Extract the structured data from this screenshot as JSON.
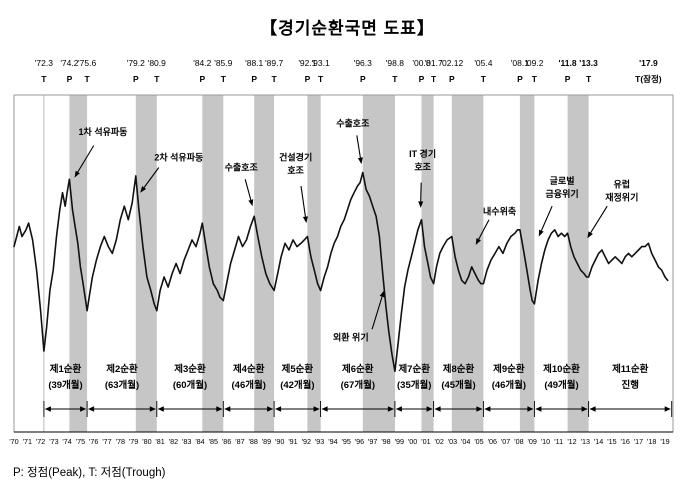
{
  "title": "【경기순환국면 도표】",
  "footnote": "P: 정점(Peak), T: 저점(Trough)",
  "chart_data": {
    "type": "line",
    "title": "경기순환국면 도표",
    "xlabel": "",
    "ylabel": "",
    "grid": false,
    "legend": "none",
    "x_range": [
      1970,
      2019.6
    ],
    "y_range": [
      0,
      100
    ],
    "colors": {
      "line": "#111111",
      "band": "#c6c6c6",
      "frame": "#999999",
      "text": "#000000"
    },
    "x_ticks": [
      "'70",
      "'71",
      "'72",
      "'73",
      "'74",
      "'75",
      "'76",
      "'77",
      "'78",
      "'79",
      "'80",
      "'81",
      "'82",
      "'83",
      "'84",
      "'85",
      "'86",
      "'87",
      "'88",
      "'89",
      "'90",
      "'91",
      "'92",
      "'93",
      "'94",
      "'95",
      "'96",
      "'97",
      "'98",
      "'99",
      "'00",
      "'01",
      "'02",
      "'03",
      "'04",
      "'05",
      "'06",
      "'07",
      "'08",
      "'09",
      "'10",
      "'11",
      "'12",
      "'13",
      "'14",
      "'15",
      "'16",
      "'17",
      "'18",
      "'19"
    ],
    "turning_points": [
      {
        "date": "'72.3",
        "marker": "T",
        "year": 1972.25,
        "bold": false
      },
      {
        "date": "'74.2",
        "marker": "P",
        "year": 1974.17,
        "bold": false
      },
      {
        "date": "'75.6",
        "marker": "T",
        "year": 1975.5,
        "bold": false
      },
      {
        "date": "'79.2",
        "marker": "P",
        "year": 1979.17,
        "bold": false
      },
      {
        "date": "'80.9",
        "marker": "T",
        "year": 1980.75,
        "bold": false
      },
      {
        "date": "'84.2",
        "marker": "P",
        "year": 1984.17,
        "bold": false
      },
      {
        "date": "'85.9",
        "marker": "T",
        "year": 1985.75,
        "bold": false
      },
      {
        "date": "'88.1",
        "marker": "P",
        "year": 1988.08,
        "bold": false
      },
      {
        "date": "'89.7",
        "marker": "T",
        "year": 1989.58,
        "bold": false
      },
      {
        "date": "'92.1",
        "marker": "P",
        "year": 1992.08,
        "bold": false
      },
      {
        "date": "'93.1",
        "marker": "T",
        "year": 1993.08,
        "bold": false
      },
      {
        "date": "'96.3",
        "marker": "P",
        "year": 1996.25,
        "bold": false
      },
      {
        "date": "'98.8",
        "marker": "T",
        "year": 1998.67,
        "bold": false
      },
      {
        "date": "'00.8",
        "marker": "P",
        "year": 2000.67,
        "bold": false
      },
      {
        "date": "'01.7",
        "marker": "T",
        "year": 2001.58,
        "bold": false
      },
      {
        "date": "'02.12",
        "marker": "P",
        "year": 2002.95,
        "bold": false
      },
      {
        "date": "'05.4",
        "marker": "T",
        "year": 2005.33,
        "bold": false
      },
      {
        "date": "'08.1",
        "marker": "P",
        "year": 2008.08,
        "bold": false
      },
      {
        "date": "'09.2",
        "marker": "T",
        "year": 2009.17,
        "bold": false
      },
      {
        "date": "'11.8",
        "marker": "P",
        "year": 2011.67,
        "bold": true
      },
      {
        "date": "'13.3",
        "marker": "T",
        "year": 2013.25,
        "bold": true
      },
      {
        "date": "'17.9",
        "marker": "T(잠정)",
        "year": 2017.75,
        "bold": true
      }
    ],
    "contraction_bands": [
      [
        1974.17,
        1975.5
      ],
      [
        1979.17,
        1980.75
      ],
      [
        1984.17,
        1985.75
      ],
      [
        1988.08,
        1989.58
      ],
      [
        1992.08,
        1993.08
      ],
      [
        1996.25,
        1998.67
      ],
      [
        2000.67,
        2001.58
      ],
      [
        2002.95,
        2005.33
      ],
      [
        2008.08,
        2009.17
      ],
      [
        2011.67,
        2013.25
      ]
    ],
    "reference_lines": [
      1972.25
    ],
    "cycles": [
      {
        "label": "제1순환",
        "sub": "(39개월)",
        "start": 1972.25,
        "end": 1975.5
      },
      {
        "label": "제2순환",
        "sub": "(63개월)",
        "start": 1975.5,
        "end": 1980.75
      },
      {
        "label": "제3순환",
        "sub": "(60개월)",
        "start": 1980.75,
        "end": 1985.75
      },
      {
        "label": "제4순환",
        "sub": "(46개월)",
        "start": 1985.75,
        "end": 1989.58
      },
      {
        "label": "제5순환",
        "sub": "(42개월)",
        "start": 1989.58,
        "end": 1993.08
      },
      {
        "label": "제6순환",
        "sub": "(67개월)",
        "start": 1993.08,
        "end": 1998.67
      },
      {
        "label": "제7순환",
        "sub": "(35개월)",
        "start": 1998.67,
        "end": 2001.58
      },
      {
        "label": "제8순환",
        "sub": "(45개월)",
        "start": 2001.58,
        "end": 2005.33
      },
      {
        "label": "제9순환",
        "sub": "(46개월)",
        "start": 2005.33,
        "end": 2009.17
      },
      {
        "label": "제10순환",
        "sub": "(49개월)",
        "start": 2009.17,
        "end": 2013.25
      },
      {
        "label": "제11순환",
        "sub": "진행",
        "start": 2013.25,
        "end": 2019.5
      }
    ],
    "annotations": [
      {
        "text": "1차 석유파동",
        "label_year": 1976.7,
        "label_v": 89,
        "arrow_from": [
          1976.0,
          85
        ],
        "arrow_to": [
          1974.55,
          75.5
        ]
      },
      {
        "text": "2차 석유파동",
        "label_year": 1982.4,
        "label_v": 81.5,
        "arrow_from": [
          1980.9,
          78.5
        ],
        "arrow_to": [
          1979.5,
          71
        ]
      },
      {
        "text": "수출호조",
        "label_year": 1987.1,
        "label_v": 78.5,
        "arrow_from": [
          1987.4,
          75
        ],
        "arrow_to": [
          1987.95,
          67
        ]
      },
      {
        "text": "건설경기\n호조",
        "label_year": 1991.2,
        "label_v": 79.5,
        "arrow_from": [
          1991.6,
          73
        ],
        "arrow_to": [
          1992.0,
          62
        ]
      },
      {
        "text": "수출호조",
        "label_year": 1995.5,
        "label_v": 91.5,
        "arrow_from": [
          1995.8,
          88
        ],
        "arrow_to": [
          1996.15,
          79.5
        ]
      },
      {
        "text": "IT 경기\n호조",
        "label_year": 2000.75,
        "label_v": 80.5,
        "arrow_from": [
          2000.65,
          74
        ],
        "arrow_to": [
          2000.6,
          66.5
        ]
      },
      {
        "text": "외환 위기",
        "label_year": 1995.35,
        "label_v": 28,
        "arrow_from": [
          1996.95,
          30.5
        ],
        "arrow_to": [
          1997.85,
          42
        ]
      },
      {
        "text": "내수위축",
        "label_year": 2006.55,
        "label_v": 65.5,
        "arrow_from": [
          2005.75,
          63
        ],
        "arrow_to": [
          2004.75,
          55.5
        ]
      },
      {
        "text": "글로벌\n금융위기",
        "label_year": 2011.25,
        "label_v": 72.5,
        "arrow_from": [
          2010.5,
          67
        ],
        "arrow_to": [
          2009.5,
          58
        ]
      },
      {
        "text": "유럽\n재정위기",
        "label_year": 2015.75,
        "label_v": 71.5,
        "arrow_from": [
          2014.65,
          67
        ],
        "arrow_to": [
          2013.15,
          57.5
        ]
      }
    ],
    "series": [
      {
        "points": [
          [
            1970.0,
            55
          ],
          [
            1970.2,
            58
          ],
          [
            1970.4,
            61
          ],
          [
            1970.6,
            58
          ],
          [
            1970.9,
            60
          ],
          [
            1971.1,
            62
          ],
          [
            1971.4,
            57
          ],
          [
            1971.7,
            48
          ],
          [
            1972.0,
            36
          ],
          [
            1972.25,
            24
          ],
          [
            1972.45,
            31
          ],
          [
            1972.7,
            42
          ],
          [
            1972.95,
            48
          ],
          [
            1973.2,
            58
          ],
          [
            1973.45,
            66
          ],
          [
            1973.65,
            71
          ],
          [
            1973.85,
            67
          ],
          [
            1974.0,
            71
          ],
          [
            1974.17,
            75
          ],
          [
            1974.4,
            66
          ],
          [
            1974.6,
            61
          ],
          [
            1974.8,
            56
          ],
          [
            1975.0,
            49
          ],
          [
            1975.2,
            44
          ],
          [
            1975.5,
            36
          ],
          [
            1975.7,
            41
          ],
          [
            1975.9,
            46
          ],
          [
            1976.2,
            51
          ],
          [
            1976.5,
            55
          ],
          [
            1976.8,
            58
          ],
          [
            1977.1,
            55
          ],
          [
            1977.4,
            53
          ],
          [
            1977.7,
            57
          ],
          [
            1978.0,
            63
          ],
          [
            1978.3,
            67
          ],
          [
            1978.6,
            63
          ],
          [
            1978.9,
            68
          ],
          [
            1979.17,
            76
          ],
          [
            1979.4,
            66
          ],
          [
            1979.7,
            55
          ],
          [
            1980.0,
            46
          ],
          [
            1980.3,
            42
          ],
          [
            1980.55,
            38
          ],
          [
            1980.75,
            36
          ],
          [
            1981.0,
            42
          ],
          [
            1981.3,
            46
          ],
          [
            1981.6,
            43
          ],
          [
            1981.9,
            47
          ],
          [
            1982.2,
            50
          ],
          [
            1982.5,
            47
          ],
          [
            1982.8,
            51
          ],
          [
            1983.1,
            54
          ],
          [
            1983.4,
            57
          ],
          [
            1983.7,
            55
          ],
          [
            1984.0,
            59
          ],
          [
            1984.17,
            62
          ],
          [
            1984.45,
            55
          ],
          [
            1984.7,
            49
          ],
          [
            1985.0,
            44
          ],
          [
            1985.3,
            42
          ],
          [
            1985.5,
            40
          ],
          [
            1985.75,
            39
          ],
          [
            1986.0,
            44
          ],
          [
            1986.3,
            50
          ],
          [
            1986.6,
            54
          ],
          [
            1986.9,
            58
          ],
          [
            1987.2,
            55
          ],
          [
            1987.5,
            57
          ],
          [
            1987.8,
            61
          ],
          [
            1988.08,
            64
          ],
          [
            1988.35,
            58
          ],
          [
            1988.65,
            52
          ],
          [
            1988.95,
            47
          ],
          [
            1989.25,
            44
          ],
          [
            1989.58,
            42
          ],
          [
            1989.85,
            47
          ],
          [
            1990.1,
            52
          ],
          [
            1990.4,
            56
          ],
          [
            1990.7,
            54
          ],
          [
            1991.0,
            57
          ],
          [
            1991.3,
            55
          ],
          [
            1991.6,
            56
          ],
          [
            1991.85,
            57
          ],
          [
            1992.08,
            58
          ],
          [
            1992.35,
            52
          ],
          [
            1992.6,
            48
          ],
          [
            1992.85,
            44
          ],
          [
            1993.08,
            42
          ],
          [
            1993.35,
            46
          ],
          [
            1993.6,
            49
          ],
          [
            1993.85,
            53
          ],
          [
            1994.1,
            56
          ],
          [
            1994.35,
            58
          ],
          [
            1994.6,
            61
          ],
          [
            1994.85,
            63
          ],
          [
            1995.1,
            66
          ],
          [
            1995.35,
            69
          ],
          [
            1995.6,
            71
          ],
          [
            1995.85,
            73
          ],
          [
            1996.05,
            74
          ],
          [
            1996.25,
            77
          ],
          [
            1996.5,
            72
          ],
          [
            1996.75,
            70
          ],
          [
            1997.0,
            67
          ],
          [
            1997.25,
            64
          ],
          [
            1997.5,
            58
          ],
          [
            1997.75,
            47
          ],
          [
            1998.0,
            37
          ],
          [
            1998.2,
            30
          ],
          [
            1998.45,
            23
          ],
          [
            1998.67,
            18
          ],
          [
            1998.9,
            26
          ],
          [
            1999.15,
            35
          ],
          [
            1999.4,
            43
          ],
          [
            1999.65,
            48
          ],
          [
            1999.9,
            52
          ],
          [
            2000.15,
            56
          ],
          [
            2000.4,
            60
          ],
          [
            2000.67,
            63
          ],
          [
            2000.9,
            55
          ],
          [
            2001.15,
            50
          ],
          [
            2001.35,
            46
          ],
          [
            2001.58,
            44
          ],
          [
            2001.8,
            49
          ],
          [
            2002.05,
            53
          ],
          [
            2002.3,
            55
          ],
          [
            2002.6,
            57
          ],
          [
            2002.95,
            58
          ],
          [
            2003.2,
            52
          ],
          [
            2003.45,
            48
          ],
          [
            2003.7,
            45
          ],
          [
            2003.95,
            44
          ],
          [
            2004.2,
            46
          ],
          [
            2004.45,
            49
          ],
          [
            2004.7,
            47
          ],
          [
            2004.95,
            45
          ],
          [
            2005.15,
            44
          ],
          [
            2005.33,
            44
          ],
          [
            2005.6,
            48
          ],
          [
            2005.9,
            51
          ],
          [
            2006.2,
            53
          ],
          [
            2006.5,
            55
          ],
          [
            2006.8,
            53
          ],
          [
            2007.1,
            56
          ],
          [
            2007.4,
            58
          ],
          [
            2007.7,
            59
          ],
          [
            2007.9,
            60
          ],
          [
            2008.08,
            60
          ],
          [
            2008.35,
            54
          ],
          [
            2008.6,
            48
          ],
          [
            2008.85,
            42
          ],
          [
            2009.0,
            39
          ],
          [
            2009.17,
            38
          ],
          [
            2009.45,
            45
          ],
          [
            2009.7,
            50
          ],
          [
            2009.95,
            54
          ],
          [
            2010.2,
            57
          ],
          [
            2010.45,
            59
          ],
          [
            2010.7,
            60
          ],
          [
            2010.95,
            58
          ],
          [
            2011.2,
            59
          ],
          [
            2011.45,
            58
          ],
          [
            2011.67,
            59
          ],
          [
            2011.9,
            55
          ],
          [
            2012.15,
            52
          ],
          [
            2012.4,
            50
          ],
          [
            2012.65,
            48
          ],
          [
            2012.9,
            47
          ],
          [
            2013.1,
            46
          ],
          [
            2013.25,
            46
          ],
          [
            2013.5,
            49
          ],
          [
            2013.75,
            51
          ],
          [
            2014.0,
            53
          ],
          [
            2014.25,
            54
          ],
          [
            2014.5,
            52
          ],
          [
            2014.75,
            50
          ],
          [
            2015.0,
            51
          ],
          [
            2015.25,
            52
          ],
          [
            2015.5,
            51
          ],
          [
            2015.75,
            50
          ],
          [
            2016.0,
            52
          ],
          [
            2016.25,
            53
          ],
          [
            2016.5,
            52
          ],
          [
            2016.75,
            53
          ],
          [
            2017.0,
            54
          ],
          [
            2017.25,
            55
          ],
          [
            2017.5,
            55
          ],
          [
            2017.75,
            56
          ],
          [
            2018.0,
            53
          ],
          [
            2018.25,
            51
          ],
          [
            2018.5,
            49
          ],
          [
            2018.75,
            48
          ],
          [
            2019.0,
            46
          ],
          [
            2019.2,
            45
          ]
        ]
      }
    ]
  }
}
